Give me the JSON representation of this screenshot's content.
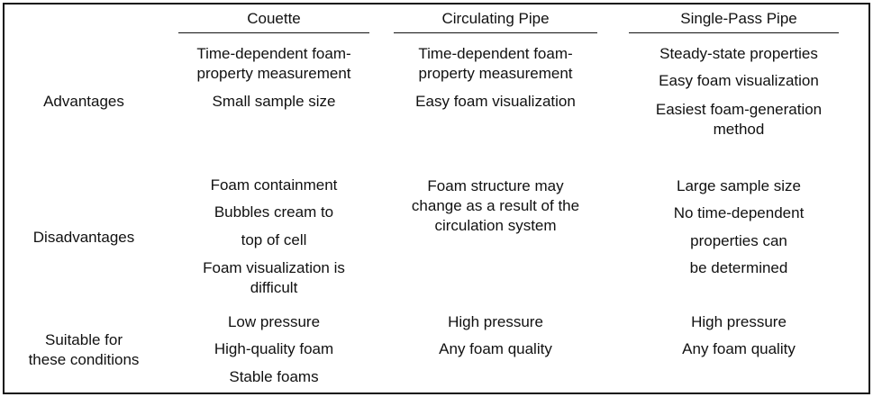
{
  "headers": {
    "couette": "Couette",
    "circulating": "Circulating Pipe",
    "single_pass": "Single-Pass Pipe"
  },
  "row_labels": {
    "advantages": "Advantages",
    "disadvantages": "Disadvantages",
    "suitable_1": "Suitable for",
    "suitable_2": "these conditions"
  },
  "advantages": {
    "couette": [
      "Time-dependent foam-",
      "property measurement",
      "Small sample size"
    ],
    "circulating": [
      "Time-dependent foam-",
      "property measurement",
      "Easy foam visualization"
    ],
    "single_pass": [
      "Steady-state properties",
      "Easy foam visualization",
      "Easiest foam-generation",
      "method"
    ]
  },
  "disadvantages": {
    "couette": [
      "Foam containment",
      "Bubbles cream to",
      "top of cell",
      "Foam visualization is",
      "difficult"
    ],
    "circulating": [
      "Foam structure may",
      "change as a result of the",
      "circulation system"
    ],
    "single_pass": [
      "Large sample size",
      "No time-dependent",
      "properties can",
      "be determined"
    ]
  },
  "conditions": {
    "couette": [
      "Low pressure",
      "High-quality foam",
      "Stable foams"
    ],
    "circulating": [
      "High pressure",
      "Any foam quality"
    ],
    "single_pass": [
      "High pressure",
      "Any foam quality"
    ]
  }
}
